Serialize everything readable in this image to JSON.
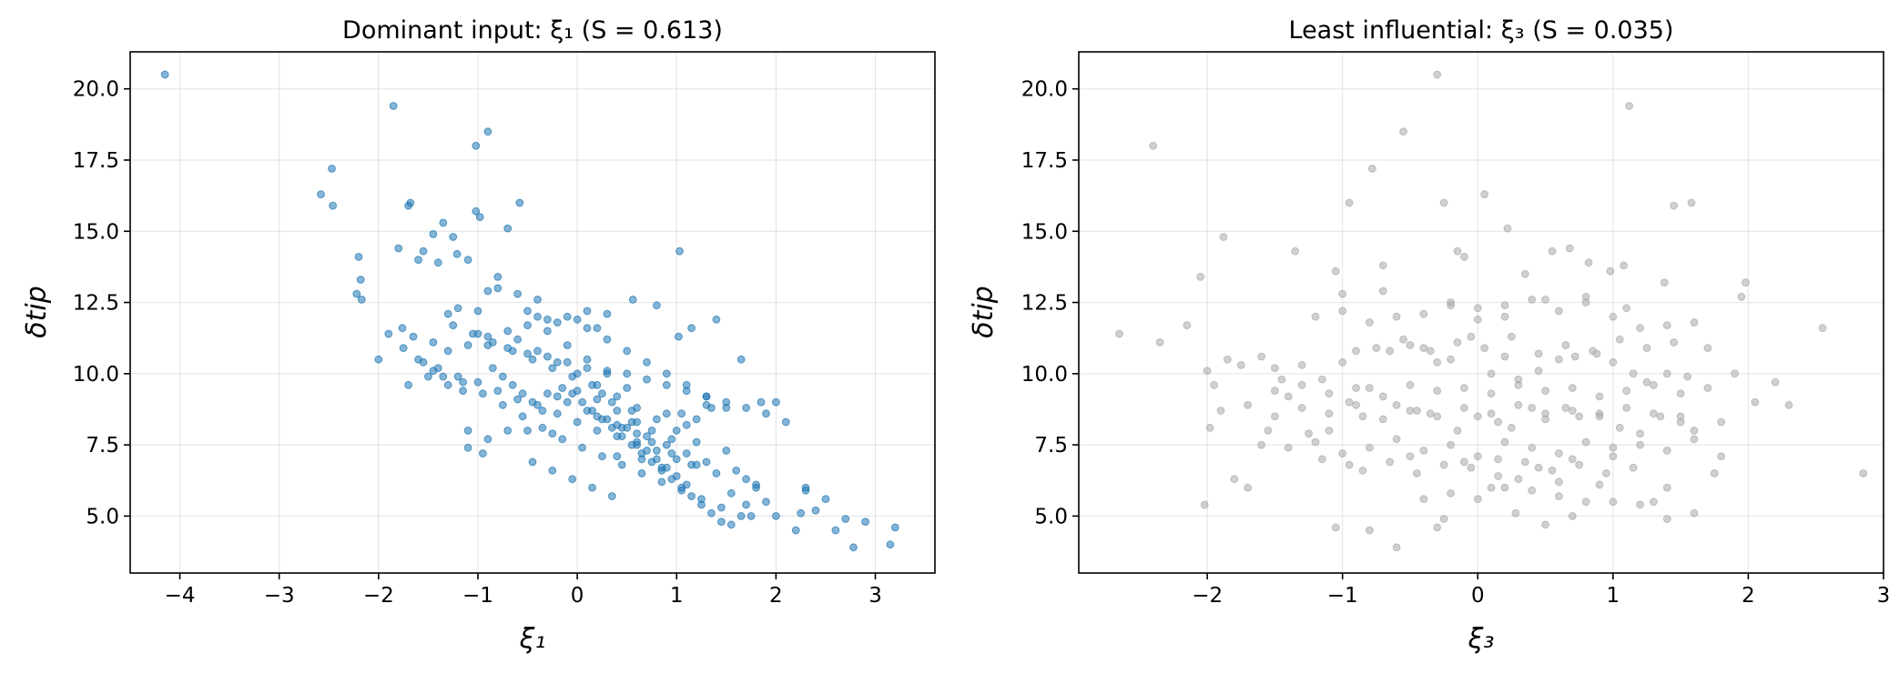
{
  "chart_data": [
    {
      "type": "scatter",
      "title": "Dominant input: ξ₁ (S = 0.613)",
      "xlabel": "ξ₁",
      "ylabel": "δtip",
      "xlim": [
        -4.5,
        3.6
      ],
      "ylim": [
        3.0,
        21.3
      ],
      "xticks": [
        -4,
        -3,
        -2,
        -1,
        0,
        1,
        2,
        3
      ],
      "xtick_labels": [
        "−4",
        "−3",
        "−2",
        "−1",
        "0",
        "1",
        "2",
        "3"
      ],
      "yticks": [
        5.0,
        7.5,
        10.0,
        12.5,
        15.0,
        17.5,
        20.0
      ],
      "ytick_labels": [
        "5.0",
        "7.5",
        "10.0",
        "12.5",
        "15.0",
        "17.5",
        "20.0"
      ],
      "grid": true,
      "color": "#1f77b4",
      "points_x": [
        -4.15,
        -1.85,
        -0.9,
        -1.02,
        -2.47,
        -2.58,
        -2.46,
        -1.68,
        -1.7,
        -0.58,
        -1.02,
        -1.35,
        -0.98,
        -0.7,
        -1.45,
        -1.25,
        -1.21,
        -1.55,
        -2.2,
        -2.18,
        -2.22,
        -2.17,
        -2.0,
        -1.8,
        -1.6,
        -1.4,
        -1.1,
        -0.8,
        -0.9,
        -0.5,
        -1.3,
        -1.2,
        -0.4,
        -0.2,
        0.1,
        0.3,
        1.03,
        0.56,
        1.02,
        -1.1,
        -1.76,
        -1.65,
        -1.45,
        -1.0,
        -0.9,
        -0.7,
        -0.5,
        -0.3,
        -0.1,
        0.1,
        0.3,
        0.5,
        0.7,
        0.9,
        1.1,
        1.3,
        1.5,
        1.7,
        1.9,
        2.1,
        2.3,
        2.5,
        2.7,
        2.9,
        3.2,
        3.15,
        2.78,
        2.6,
        2.25,
        2.3,
        1.7,
        1.8,
        1.55,
        1.9,
        2.0,
        1.4,
        1.2,
        1.0,
        0.8,
        0.6,
        0.4,
        0.2,
        0.0,
        -0.2,
        -0.4,
        -0.6,
        -0.8,
        -1.0,
        -1.2,
        -1.4,
        -1.6,
        -1.3,
        -1.1,
        -0.9,
        -0.7,
        -0.5,
        -0.3,
        -0.1,
        0.1,
        0.3,
        0.5,
        0.7,
        0.9,
        1.1,
        1.3,
        1.5,
        -0.15,
        -0.05,
        0.05,
        0.15,
        0.25,
        0.35,
        0.45,
        0.55,
        0.65,
        0.75,
        0.85,
        0.95,
        1.05,
        1.15,
        1.25,
        1.35,
        1.45,
        1.55,
        1.65,
        -0.85,
        -0.75,
        -0.65,
        -0.55,
        -0.45,
        -0.35,
        -0.25,
        0.6,
        0.7,
        0.8,
        0.9,
        1.0,
        1.1,
        1.2,
        0.45,
        0.55,
        0.35,
        0.25,
        0.15,
        -0.05,
        -0.25,
        -0.45,
        -0.65,
        -0.85,
        -1.05,
        -1.25,
        -1.45,
        -1.15,
        -0.95,
        -0.75,
        -0.55,
        -0.35,
        -0.15,
        0.05,
        0.25,
        0.45,
        0.65,
        0.85,
        1.05,
        1.25,
        1.45,
        1.65,
        1.85,
        0.5,
        0.3,
        0.1,
        -0.1,
        -0.3,
        -0.5,
        0.75,
        0.95,
        1.15,
        1.35,
        0.2,
        0.4,
        0.6,
        0.8,
        -0.4,
        -0.6,
        -0.8,
        -1.0,
        0.0,
        0.2,
        0.4,
        1.6,
        1.8,
        2.0,
        0.9,
        1.1,
        1.3,
        -0.2,
        0.0,
        0.2,
        0.4,
        0.6,
        -0.7,
        -0.9,
        -1.1,
        -1.3,
        -1.5,
        -1.7,
        -0.3,
        -0.1,
        0.1,
        0.3,
        0.5,
        0.7,
        0.9,
        1.1,
        1.3,
        1.5,
        0.65,
        0.85,
        1.05,
        0.55,
        0.75,
        0.95,
        1.15,
        -0.6,
        -0.4,
        -0.2,
        0.0,
        0.2,
        0.4,
        0.6,
        0.8,
        1.0,
        1.2,
        1.4,
        -1.9,
        -1.75,
        -1.55,
        -1.35,
        -1.15,
        -0.95,
        -0.45,
        -0.25,
        -0.05,
        0.15,
        0.35,
        1.7,
        1.75,
        2.2,
        2.4,
        1.6
      ],
      "points_y": [
        20.5,
        19.4,
        18.5,
        18.0,
        17.2,
        16.3,
        15.9,
        16.0,
        15.9,
        16.0,
        15.7,
        15.3,
        15.5,
        15.1,
        14.9,
        14.8,
        14.2,
        14.3,
        14.1,
        13.3,
        12.8,
        12.6,
        10.5,
        14.4,
        14.0,
        13.9,
        14.0,
        13.4,
        12.9,
        12.2,
        12.1,
        12.3,
        12.0,
        11.8,
        12.2,
        12.1,
        14.3,
        12.6,
        11.3,
        8.0,
        11.6,
        11.3,
        11.1,
        11.4,
        11.0,
        10.9,
        10.7,
        10.6,
        10.4,
        10.2,
        10.1,
        10.0,
        9.8,
        9.6,
        9.4,
        9.2,
        9.0,
        8.8,
        8.6,
        8.3,
        6.0,
        5.6,
        4.9,
        4.8,
        4.6,
        4.0,
        3.9,
        4.5,
        5.1,
        5.9,
        6.3,
        6.0,
        5.8,
        5.5,
        5.0,
        6.5,
        6.8,
        7.0,
        7.3,
        7.5,
        7.8,
        8.0,
        8.3,
        8.6,
        8.9,
        9.1,
        9.4,
        9.7,
        9.9,
        10.2,
        10.5,
        10.8,
        11.0,
        11.3,
        11.5,
        11.7,
        11.9,
        12.0,
        11.6,
        11.2,
        10.8,
        10.4,
        10.0,
        9.6,
        9.2,
        8.8,
        9.5,
        9.3,
        9.0,
        8.7,
        8.4,
        8.1,
        7.8,
        7.5,
        7.2,
        6.9,
        6.6,
        6.3,
        6.0,
        5.7,
        5.4,
        5.1,
        4.8,
        4.7,
        10.5,
        10.2,
        9.9,
        9.6,
        9.3,
        9.0,
        8.7,
        7.9,
        7.6,
        7.3,
        7.0,
        6.7,
        6.4,
        6.1,
        8.4,
        8.1,
        8.7,
        9.0,
        9.3,
        9.6,
        9.9,
        10.2,
        10.5,
        10.8,
        11.1,
        11.4,
        11.7,
        10.1,
        9.7,
        9.3,
        8.9,
        8.5,
        8.1,
        7.7,
        7.4,
        7.1,
        6.8,
        6.5,
        6.2,
        5.9,
        5.6,
        5.3,
        5.0,
        9.0,
        9.5,
        10.0,
        10.5,
        11.0,
        11.5,
        8.0,
        7.6,
        7.2,
        6.8,
        8.8,
        8.5,
        8.2,
        7.9,
        12.4,
        12.6,
        12.8,
        13.0,
        12.2,
        11.9,
        11.6,
        7.1,
        6.6,
        6.1,
        9.0,
        8.6,
        8.2,
        8.9,
        9.2,
        9.4,
        9.1,
        8.7,
        8.3,
        8.0,
        7.7,
        7.4,
        9.6,
        9.9,
        9.6,
        9.3,
        9.0,
        8.7,
        8.4,
        8.1,
        7.8,
        7.5,
        7.2,
        6.9,
        7.3,
        7.0,
        6.7,
        8.6,
        8.3,
        8.0,
        7.7,
        11.6,
        11.2,
        10.8,
        10.4,
        10.0,
        9.6,
        9.2,
        8.8,
        8.4,
        8.0,
        7.6,
        11.9,
        11.4,
        10.9,
        10.4,
        9.9,
        9.4,
        7.2,
        6.9,
        6.6,
        6.3,
        6.0,
        5.7,
        5.4,
        5.0,
        4.5,
        5.2
      ]
    },
    {
      "type": "scatter",
      "title": "Least influential: ξ₃ (S = 0.035)",
      "xlabel": "ξ₃",
      "ylabel": "δtip",
      "xlim": [
        -2.95,
        3.0
      ],
      "ylim": [
        3.0,
        21.3
      ],
      "xticks": [
        -2,
        -1,
        0,
        1,
        2,
        3
      ],
      "xtick_labels": [
        "−2",
        "−1",
        "0",
        "1",
        "2",
        "3"
      ],
      "yticks": [
        5.0,
        7.5,
        10.0,
        12.5,
        15.0,
        17.5,
        20.0
      ],
      "ytick_labels": [
        "5.0",
        "7.5",
        "10.0",
        "12.5",
        "15.0",
        "17.5",
        "20.0"
      ],
      "grid": true,
      "color": "#a9a9a9",
      "points_x": [
        -0.3,
        1.12,
        -2.4,
        -0.55,
        -0.78,
        -0.95,
        -0.25,
        0.05,
        0.22,
        0.68,
        1.45,
        1.58,
        -1.88,
        -2.05,
        -1.35,
        -1.05,
        -0.7,
        -0.15,
        -0.1,
        0.35,
        0.55,
        0.82,
        0.98,
        1.08,
        1.38,
        1.95,
        1.98,
        2.55,
        2.85,
        -2.65,
        -2.35,
        -2.15,
        -2.0,
        -1.95,
        -1.85,
        -1.75,
        -1.6,
        -1.5,
        -1.45,
        -1.3,
        -1.15,
        -1.0,
        -0.9,
        -0.8,
        -0.65,
        -0.5,
        -0.4,
        -0.3,
        -0.2,
        -0.05,
        0.1,
        0.2,
        0.3,
        0.45,
        0.6,
        0.72,
        0.88,
        1.0,
        1.15,
        1.25,
        1.4,
        1.55,
        1.7,
        1.8,
        1.9,
        2.05,
        2.2,
        2.3,
        -1.98,
        -2.02,
        -1.8,
        -1.7,
        -1.55,
        -1.4,
        -1.25,
        -1.1,
        -0.95,
        -0.85,
        -0.6,
        -0.45,
        -0.35,
        -0.15,
        0.0,
        0.15,
        0.25,
        0.4,
        0.5,
        0.65,
        0.75,
        0.9,
        1.05,
        1.2,
        1.35,
        1.5,
        1.6,
        1.75,
        -0.4,
        -0.2,
        0.0,
        0.2,
        0.4,
        0.6,
        0.8,
        1.0,
        1.2,
        1.4,
        -1.2,
        -1.0,
        -0.8,
        -0.6,
        -0.4,
        -0.2,
        0.0,
        0.2,
        0.4,
        0.6,
        0.8,
        1.0,
        1.2,
        1.4,
        1.6,
        -1.6,
        -1.4,
        -1.2,
        -1.0,
        -0.8,
        -0.6,
        -0.4,
        -0.2,
        0.0,
        0.2,
        0.4,
        0.6,
        0.8,
        1.0,
        1.2,
        1.4,
        1.6,
        1.8,
        -1.5,
        -1.3,
        -1.1,
        -0.9,
        -0.7,
        -0.5,
        -0.3,
        -0.1,
        0.1,
        0.3,
        0.5,
        0.7,
        0.9,
        1.1,
        1.3,
        1.5,
        1.7,
        -1.9,
        -1.7,
        -1.5,
        -1.3,
        -1.1,
        -0.9,
        -0.7,
        -0.5,
        -0.3,
        -0.1,
        0.1,
        0.3,
        0.5,
        0.7,
        0.9,
        1.1,
        1.3,
        1.5,
        -0.85,
        -0.65,
        -0.45,
        -0.25,
        -0.05,
        0.15,
        0.35,
        0.55,
        0.75,
        0.95,
        1.15,
        -0.75,
        -0.55,
        -0.35,
        -0.15,
        0.05,
        0.25,
        0.45,
        0.65,
        0.85,
        1.05,
        1.25,
        1.45,
        -1.05,
        -0.25,
        0.28,
        0.5,
        0.7,
        1.3,
        1.4,
        1.6,
        -0.6,
        -0.8,
        -0.3,
        0.1,
        0.3,
        0.6,
        0.9,
        -1.0,
        -0.7,
        -0.2,
        0.0,
        0.2,
        0.5,
        0.8,
        1.1,
        -1.15,
        -0.95,
        -0.5,
        -0.1,
        0.15,
        0.45,
        0.7,
        1.0
      ],
      "points_y": [
        20.5,
        19.4,
        18.0,
        18.5,
        17.2,
        16.0,
        16.0,
        16.3,
        15.1,
        14.4,
        15.9,
        16.0,
        14.8,
        13.4,
        14.3,
        13.6,
        13.8,
        14.3,
        14.1,
        13.5,
        14.3,
        13.9,
        13.6,
        13.8,
        13.2,
        12.7,
        13.2,
        11.6,
        6.5,
        11.4,
        11.1,
        11.7,
        10.1,
        9.6,
        10.5,
        10.3,
        10.6,
        10.2,
        9.8,
        10.3,
        9.8,
        10.4,
        10.8,
        9.5,
        10.8,
        11.0,
        10.9,
        10.4,
        10.5,
        11.3,
        10.0,
        10.6,
        9.8,
        10.1,
        10.5,
        10.6,
        10.7,
        10.4,
        10.0,
        9.7,
        10.0,
        9.9,
        10.9,
        8.3,
        10.0,
        9.0,
        9.7,
        8.9,
        8.1,
        5.4,
        6.3,
        6.0,
        8.0,
        9.2,
        7.9,
        8.0,
        9.0,
        8.5,
        8.9,
        8.7,
        8.6,
        8.0,
        8.5,
        8.3,
        8.1,
        8.8,
        8.6,
        8.8,
        8.5,
        8.6,
        8.1,
        7.9,
        8.5,
        8.5,
        8.0,
        6.5,
        5.6,
        5.8,
        5.6,
        6.0,
        5.9,
        5.7,
        5.5,
        5.5,
        5.4,
        6.0,
        12.0,
        12.2,
        11.8,
        12.0,
        12.1,
        12.5,
        12.3,
        12.4,
        12.6,
        12.2,
        12.7,
        12.0,
        11.6,
        11.7,
        11.8,
        7.5,
        7.4,
        7.6,
        7.2,
        7.4,
        7.7,
        7.3,
        7.5,
        7.1,
        7.6,
        7.4,
        7.2,
        7.6,
        7.4,
        7.5,
        7.3,
        7.7,
        7.1,
        9.4,
        9.6,
        9.3,
        9.5,
        9.2,
        9.6,
        9.4,
        9.5,
        9.3,
        9.6,
        9.4,
        9.5,
        9.2,
        9.4,
        9.6,
        9.3,
        9.5,
        8.7,
        8.9,
        8.5,
        8.8,
        8.6,
        8.9,
        8.4,
        8.7,
        8.5,
        8.8,
        8.6,
        8.9,
        8.4,
        8.7,
        8.5,
        8.8,
        8.6,
        8.3,
        6.6,
        6.9,
        6.5,
        6.8,
        6.7,
        6.4,
        6.9,
        6.6,
        6.8,
        6.5,
        6.7,
        10.9,
        11.2,
        10.8,
        11.1,
        10.9,
        11.3,
        10.7,
        11.0,
        10.8,
        11.2,
        10.9,
        11.1,
        4.6,
        4.9,
        5.1,
        4.7,
        5.0,
        5.5,
        4.9,
        5.1,
        3.9,
        4.5,
        4.6,
        6.0,
        6.3,
        6.2,
        6.1,
        12.8,
        12.9,
        12.4,
        11.9,
        12.0,
        12.6,
        12.5,
        12.3,
        7.0,
        6.8,
        7.1,
        6.9,
        7.0,
        6.7,
        7.0,
        7.1
      ]
    }
  ]
}
